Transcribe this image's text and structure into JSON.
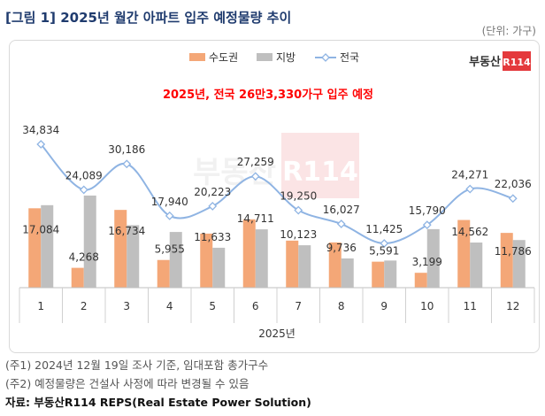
{
  "header": {
    "title": "[그림 1] 2025년 월간 아파트 입주 예정물량 추이",
    "unit": "(단위: 가구)"
  },
  "logo": {
    "brand": "부동산",
    "mark": "R114"
  },
  "annotation": "2025년, 전국 26만3,330가구 입주 예정",
  "footnotes": [
    "(주1) 2024년 12월 19일 조사 기준, 임대포함 총가구수",
    "(주2) 예정물량은 건설사 사정에 따라 변경될 수 있음"
  ],
  "source": "자료: 부동산R114 REPS(Real Estate Power Solution)",
  "colors": {
    "capital": "#f4a777",
    "regional": "#bfbfbf",
    "national": "#8fb4e3",
    "annotation": "#ff0000",
    "title": "#1f3b6e",
    "logo": "#e4393c"
  },
  "chart_data": {
    "type": "bar",
    "categories": [
      "1",
      "2",
      "3",
      "4",
      "5",
      "6",
      "7",
      "8",
      "9",
      "10",
      "11",
      "12"
    ],
    "xlabel": "2025년",
    "legend": [
      "수도권",
      "지방",
      "전국"
    ],
    "legend_position": "top",
    "grid": false,
    "series": [
      {
        "name": "수도권",
        "type": "bar",
        "values": [
          17084,
          4268,
          16734,
          5955,
          11633,
          14711,
          10123,
          9736,
          5591,
          3199,
          14562,
          11786
        ],
        "data_labels": [
          "17,084",
          "4,268",
          "16,734",
          "5,955",
          "11,633",
          "14,711",
          "10,123",
          "9,736",
          "5,591",
          "3,199",
          "14,562",
          "11,786"
        ]
      },
      {
        "name": "지방",
        "type": "bar",
        "values": [
          17750,
          19821,
          13452,
          11985,
          8590,
          12548,
          9127,
          6291,
          5834,
          12591,
          9709,
          10250
        ]
      },
      {
        "name": "전국",
        "type": "line",
        "values": [
          34834,
          24089,
          30186,
          17940,
          20223,
          27259,
          19250,
          16027,
          11425,
          15790,
          24271,
          22036
        ],
        "data_labels": [
          "34,834",
          "24,089",
          "30,186",
          "17,940",
          "20,223",
          "27,259",
          "19,250",
          "16,027",
          "11,425",
          "15,790",
          "24,271",
          "22,036"
        ]
      }
    ]
  }
}
